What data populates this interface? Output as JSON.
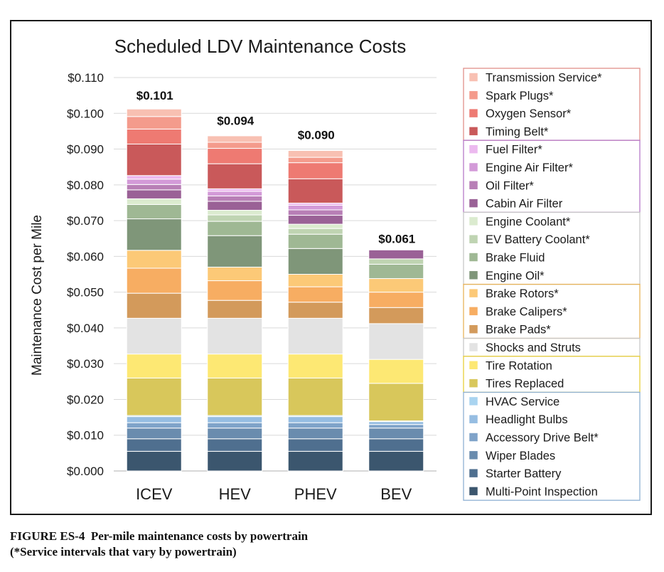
{
  "chart_data": {
    "type": "bar",
    "stacked": true,
    "title": "Scheduled LDV Maintenance Costs",
    "xlabel": "",
    "ylabel": "Maintenance Cost per Mile",
    "ylim": [
      0,
      0.11
    ],
    "yticks": [
      "$0.000",
      "$0.010",
      "$0.020",
      "$0.030",
      "$0.040",
      "$0.050",
      "$0.060",
      "$0.070",
      "$0.080",
      "$0.090",
      "$0.100",
      "$0.110"
    ],
    "grid": true,
    "legend_position": "right",
    "categories": [
      "ICEV",
      "HEV",
      "PHEV",
      "BEV"
    ],
    "totals": [
      0.101,
      0.094,
      0.09,
      0.061
    ],
    "total_labels": [
      "$0.101",
      "$0.094",
      "$0.090",
      "$0.061"
    ],
    "series": [
      {
        "name": "Multi-Point Inspection",
        "color": "#3b566e",
        "group": "blue",
        "values": [
          0.0055,
          0.0055,
          0.0055,
          0.0055
        ]
      },
      {
        "name": "Starter Battery",
        "color": "#4f6f8f",
        "group": "blue",
        "values": [
          0.0035,
          0.0035,
          0.0035,
          0.0035
        ]
      },
      {
        "name": "Wiper Blades",
        "color": "#6a8cae",
        "group": "blue",
        "values": [
          0.003,
          0.003,
          0.003,
          0.003
        ]
      },
      {
        "name": "Accessory Drive Belt*",
        "color": "#7fa3c9",
        "group": "blue",
        "values": [
          0.0015,
          0.0015,
          0.0015,
          0.001
        ]
      },
      {
        "name": "Headlight Bulbs",
        "color": "#96bde2",
        "group": "blue",
        "values": [
          0.0017,
          0.0017,
          0.0017,
          0.0008
        ]
      },
      {
        "name": "HVAC Service",
        "color": "#a9d4f0",
        "group": "blue",
        "values": [
          0.0003,
          0.0003,
          0.0003,
          0.0002
        ]
      },
      {
        "name": "Tires Replaced",
        "color": "#d8c75b",
        "group": "yellow",
        "values": [
          0.0105,
          0.0105,
          0.0105,
          0.0105
        ]
      },
      {
        "name": "Tire Rotation",
        "color": "#fde873",
        "group": "yellow",
        "values": [
          0.0067,
          0.0067,
          0.0067,
          0.0067
        ]
      },
      {
        "name": "Shocks and Struts",
        "color": "#e3e3e3",
        "group": "gray",
        "values": [
          0.01,
          0.01,
          0.01,
          0.01
        ]
      },
      {
        "name": "Brake Pads*",
        "color": "#d39a5b",
        "group": "orange",
        "values": [
          0.007,
          0.005,
          0.0045,
          0.0045
        ]
      },
      {
        "name": "Brake Calipers*",
        "color": "#f7ad62",
        "group": "orange",
        "values": [
          0.007,
          0.0055,
          0.0043,
          0.0043
        ]
      },
      {
        "name": "Brake Rotors*",
        "color": "#fcc977",
        "group": "orange",
        "values": [
          0.005,
          0.0038,
          0.0035,
          0.0038
        ]
      },
      {
        "name": "Engine Oil*",
        "color": "#7f9679",
        "group": "green",
        "values": [
          0.0088,
          0.0088,
          0.0072,
          0
        ]
      },
      {
        "name": "Brake Fluid",
        "color": "#9fb894",
        "group": "green",
        "values": [
          0.004,
          0.004,
          0.004,
          0.004
        ]
      },
      {
        "name": "EV Battery Coolant*",
        "color": "#bfd4b2",
        "group": "green",
        "values": [
          0,
          0.0018,
          0.0016,
          0.0015
        ]
      },
      {
        "name": "Engine Coolant*",
        "color": "#dbebcf",
        "group": "green",
        "values": [
          0.0016,
          0.0013,
          0.0012,
          0
        ]
      },
      {
        "name": "Cabin Air Filter",
        "color": "#9a6196",
        "group": "purple",
        "values": [
          0.0025,
          0.0025,
          0.0025,
          0.0025
        ]
      },
      {
        "name": "Oil Filter*",
        "color": "#b87fb6",
        "group": "purple",
        "values": [
          0.0015,
          0.0015,
          0.0015,
          0
        ]
      },
      {
        "name": "Engine Air Filter*",
        "color": "#d39ad8",
        "group": "purple",
        "values": [
          0.0015,
          0.0013,
          0.0013,
          0
        ]
      },
      {
        "name": "Fuel Filter*",
        "color": "#ecb9ef",
        "group": "purple",
        "values": [
          0.001,
          0.0007,
          0.0006,
          0
        ]
      },
      {
        "name": "Timing Belt*",
        "color": "#c9595a",
        "group": "red",
        "values": [
          0.0088,
          0.007,
          0.0068,
          0
        ]
      },
      {
        "name": "Oxygen Sensor*",
        "color": "#ee7a72",
        "group": "red",
        "values": [
          0.0042,
          0.0043,
          0.0045,
          0
        ]
      },
      {
        "name": "Spark Plugs*",
        "color": "#f49b8c",
        "group": "red",
        "values": [
          0.0035,
          0.0017,
          0.0015,
          0
        ]
      },
      {
        "name": "Transmission Service*",
        "color": "#f8c0b2",
        "group": "red",
        "values": [
          0.0021,
          0.0018,
          0.0019,
          0
        ]
      }
    ],
    "legend_groups": [
      {
        "group": "red",
        "border": "#e0908a",
        "items": [
          "Transmission Service*",
          "Spark Plugs*",
          "Oxygen Sensor*",
          "Timing Belt*"
        ]
      },
      {
        "group": "purple",
        "border": "#b77ac8",
        "items": [
          "Fuel Filter*",
          "Engine Air Filter*",
          "Oil Filter*",
          "Cabin Air Filter"
        ]
      },
      {
        "group": "green",
        "border": "#c8c8c8",
        "items": [
          "Engine Coolant*",
          "EV Battery Coolant*",
          "Brake Fluid",
          "Engine Oil*"
        ]
      },
      {
        "group": "orange",
        "border": "#e8b35a",
        "items": [
          "Brake Rotors*",
          "Brake Calipers*",
          "Brake Pads*"
        ]
      },
      {
        "group": "gray",
        "border": "#c8c8c8",
        "items": [
          "Shocks and Struts"
        ]
      },
      {
        "group": "yellow",
        "border": "#e8cf3a",
        "items": [
          "Tire Rotation",
          "Tires Replaced"
        ]
      },
      {
        "group": "blue",
        "border": "#8fb1d3",
        "items": [
          "HVAC Service",
          "Headlight Bulbs",
          "Accessory Drive Belt*",
          "Wiper Blades",
          "Starter Battery",
          "Multi-Point Inspection"
        ]
      }
    ]
  },
  "caption": {
    "line1": "FIGURE ES-4  Per-mile maintenance costs by powertrain",
    "line2": "(*Service intervals that vary by powertrain)"
  }
}
